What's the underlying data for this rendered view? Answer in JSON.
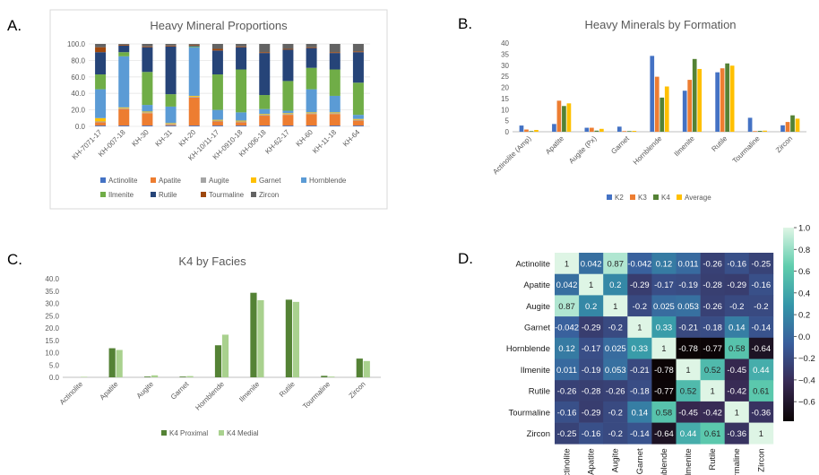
{
  "panels": {
    "a": {
      "letter": "A."
    },
    "b": {
      "letter": "B."
    },
    "c": {
      "letter": "C."
    },
    "d": {
      "letter": "D."
    }
  },
  "chart_data": [
    {
      "id": "a",
      "type": "bar",
      "stacked": true,
      "title": "Heavy Mineral Proportions",
      "categories": [
        "KH-7071-17",
        "KH-007-18",
        "KH-30",
        "KH-31",
        "KH-20",
        "KH-10/11-17",
        "KH-0910-18",
        "KH-006-18",
        "KH-62-17",
        "KH-60",
        "KH-11-18",
        "KH-64"
      ],
      "ylim": [
        0,
        100
      ],
      "yticks": [
        0,
        20,
        40,
        60,
        80,
        100
      ],
      "ytick_labels": [
        "0.0",
        "20.0",
        "40.0",
        "60.0",
        "80.0",
        "100.0"
      ],
      "legend_position": "bottom",
      "series": [
        {
          "name": "Actinolite",
          "color": "#4472c4",
          "values": [
            1,
            1,
            1,
            1,
            1,
            1,
            1,
            1,
            1,
            1,
            1,
            1
          ]
        },
        {
          "name": "Apatite",
          "color": "#ed7d31",
          "values": [
            4,
            20,
            15,
            1,
            34,
            5,
            4,
            12,
            13,
            14,
            14,
            6
          ]
        },
        {
          "name": "Augite",
          "color": "#a5a5a5",
          "values": [
            1,
            1,
            1,
            1,
            1,
            1,
            1,
            1,
            1,
            1,
            1,
            1
          ]
        },
        {
          "name": "Garnet",
          "color": "#ffc000",
          "values": [
            4,
            1,
            1,
            1,
            1,
            1,
            1,
            1,
            1,
            1,
            1,
            1
          ]
        },
        {
          "name": "Hornblende",
          "color": "#5b9bd5",
          "values": [
            35,
            62,
            8,
            20,
            59,
            12,
            10,
            6,
            3,
            28,
            20,
            5
          ]
        },
        {
          "name": "Ilmenite",
          "color": "#70ad47",
          "values": [
            18,
            5,
            40,
            15,
            1,
            43,
            52,
            17,
            36,
            26,
            32,
            39
          ]
        },
        {
          "name": "Rutile",
          "color": "#264478",
          "values": [
            27,
            8,
            30,
            58,
            1,
            29,
            27,
            51,
            38,
            24,
            20,
            37
          ]
        },
        {
          "name": "Tourmaline",
          "color": "#9e480e",
          "values": [
            6,
            1,
            1,
            1,
            1,
            2,
            1,
            1,
            1,
            1,
            1,
            1
          ]
        },
        {
          "name": "Zircon",
          "color": "#636363",
          "values": [
            4,
            1,
            3,
            2,
            1,
            6,
            3,
            10,
            6,
            4,
            10,
            9
          ]
        }
      ]
    },
    {
      "id": "b",
      "type": "bar",
      "title": "Heavy Minerals by Formation",
      "categories": [
        "Actinolite (Amp)",
        "Apatite",
        "Augite (Px)",
        "Garnet",
        "Hornblende",
        "Ilmenite",
        "Rutile",
        "Tourmaline",
        "Zircon"
      ],
      "ylim": [
        0,
        40
      ],
      "yticks": [
        0,
        5,
        10,
        15,
        20,
        25,
        30,
        35,
        40
      ],
      "ytick_labels": [
        "0",
        "5",
        "10",
        "15",
        "20",
        "25",
        "30",
        "35",
        "40"
      ],
      "legend_position": "bottom",
      "series": [
        {
          "name": "K2",
          "color": "#4472c4",
          "values": [
            2.8,
            3.5,
            1.8,
            2.3,
            34.2,
            18.5,
            26.8,
            6.3,
            2.9
          ]
        },
        {
          "name": "K3",
          "color": "#ed7d31",
          "values": [
            1.0,
            14.0,
            1.8,
            0.3,
            24.8,
            23.4,
            28.6,
            0.3,
            4.4
          ]
        },
        {
          "name": "K4",
          "color": "#548235",
          "values": [
            0.3,
            11.6,
            0.5,
            0.3,
            15.4,
            32.8,
            30.8,
            0.4,
            7.4
          ]
        },
        {
          "name": "Average",
          "color": "#ffc000",
          "values": [
            0.8,
            12.8,
            1.3,
            0.4,
            20.4,
            28.3,
            29.8,
            0.5,
            5.9
          ]
        }
      ]
    },
    {
      "id": "c",
      "type": "bar",
      "title": "K4 by Facies",
      "categories": [
        "Actinolite",
        "Apatite",
        "Augite",
        "Garnet",
        "Hornblende",
        "Ilmenite",
        "Rutile",
        "Tourmaline",
        "Zircon"
      ],
      "ylim": [
        0,
        40
      ],
      "yticks": [
        0,
        5,
        10,
        15,
        20,
        25,
        30,
        35,
        40
      ],
      "ytick_labels": [
        "0.0",
        "5.0",
        "10.0",
        "15.0",
        "20.0",
        "25.0",
        "30.0",
        "35.0",
        "40.0"
      ],
      "legend_position": "bottom",
      "series": [
        {
          "name": "K4 Proximal",
          "color": "#548235",
          "values": [
            0.0,
            11.8,
            0.3,
            0.3,
            13.0,
            34.3,
            31.5,
            0.6,
            7.6
          ]
        },
        {
          "name": "K4 Medial",
          "color": "#a9d18e",
          "values": [
            0.2,
            11.1,
            0.8,
            0.5,
            17.3,
            31.3,
            30.6,
            0.3,
            6.6
          ]
        }
      ]
    },
    {
      "id": "d",
      "type": "heatmap",
      "labels": [
        "Actinolite",
        "Apatite",
        "Augite",
        "Garnet",
        "Hornblende",
        "Ilmenite",
        "Rutile",
        "Tourmaline",
        "Zircon"
      ],
      "matrix": [
        [
          1,
          0.042,
          0.87,
          -0.042,
          0.12,
          0.011,
          -0.26,
          -0.16,
          -0.25
        ],
        [
          0.042,
          1,
          0.2,
          -0.29,
          -0.17,
          -0.19,
          -0.28,
          -0.29,
          -0.16
        ],
        [
          0.87,
          0.2,
          1,
          -0.2,
          0.025,
          0.053,
          -0.26,
          -0.2,
          -0.2
        ],
        [
          -0.042,
          -0.29,
          -0.2,
          1,
          0.33,
          -0.21,
          -0.18,
          0.14,
          -0.14
        ],
        [
          0.12,
          -0.17,
          0.025,
          0.33,
          1,
          -0.78,
          -0.77,
          0.58,
          -0.64
        ],
        [
          0.011,
          -0.19,
          0.053,
          -0.21,
          -0.78,
          1,
          0.52,
          -0.45,
          0.44
        ],
        [
          -0.26,
          -0.28,
          -0.26,
          -0.18,
          -0.77,
          0.52,
          1,
          -0.42,
          0.61
        ],
        [
          -0.16,
          -0.29,
          -0.2,
          0.14,
          0.58,
          -0.45,
          -0.42,
          1,
          -0.36
        ],
        [
          -0.25,
          -0.16,
          -0.2,
          -0.14,
          -0.64,
          0.44,
          0.61,
          -0.36,
          1
        ]
      ],
      "cell_labels": [
        [
          "1",
          "0.042",
          "0.87",
          "-0.042",
          "0.12",
          "0.011",
          "-0.26",
          "-0.16",
          "-0.25"
        ],
        [
          "0.042",
          "1",
          "0.2",
          "-0.29",
          "-0.17",
          "-0.19",
          "-0.28",
          "-0.29",
          "-0.16"
        ],
        [
          "0.87",
          "0.2",
          "1",
          "-0.2",
          "0.025",
          "0.053",
          "-0.26",
          "-0.2",
          "-0.2"
        ],
        [
          "-0.042",
          "-0.29",
          "-0.2",
          "1",
          "0.33",
          "-0.21",
          "-0.18",
          "0.14",
          "-0.14"
        ],
        [
          "0.12",
          "-0.17",
          "0.025",
          "0.33",
          "1",
          "-0.78",
          "-0.77",
          "0.58",
          "-0.64"
        ],
        [
          "0.011",
          "-0.19",
          "0.053",
          "-0.21",
          "-0.78",
          "1",
          "0.52",
          "-0.45",
          "0.44"
        ],
        [
          "-0.26",
          "-0.28",
          "-0.26",
          "-0.18",
          "-0.77",
          "0.52",
          "1",
          "-0.42",
          "0.61"
        ],
        [
          "-0.16",
          "-0.29",
          "-0.2",
          "0.14",
          "0.58",
          "-0.45",
          "-0.42",
          "1",
          "-0.36"
        ],
        [
          "-0.25",
          "-0.16",
          "-0.2",
          "-0.14",
          "-0.64",
          "0.44",
          "0.61",
          "-0.36",
          "1"
        ]
      ],
      "colorbar": {
        "range": [
          -0.78,
          1.0
        ],
        "ticks": [
          1.0,
          0.8,
          0.6,
          0.4,
          0.2,
          0.0,
          -0.2,
          -0.4,
          -0.6
        ],
        "tick_labels": [
          "1.0",
          "0.8",
          "0.6",
          "0.4",
          "0.2",
          "0.0",
          "−0.2",
          "−0.4",
          "−0.6"
        ],
        "colormap": "mako",
        "colors": [
          "#0b0405",
          "#382a54",
          "#395d9c",
          "#3496a9",
          "#5fcdad",
          "#def5e5"
        ]
      }
    }
  ]
}
